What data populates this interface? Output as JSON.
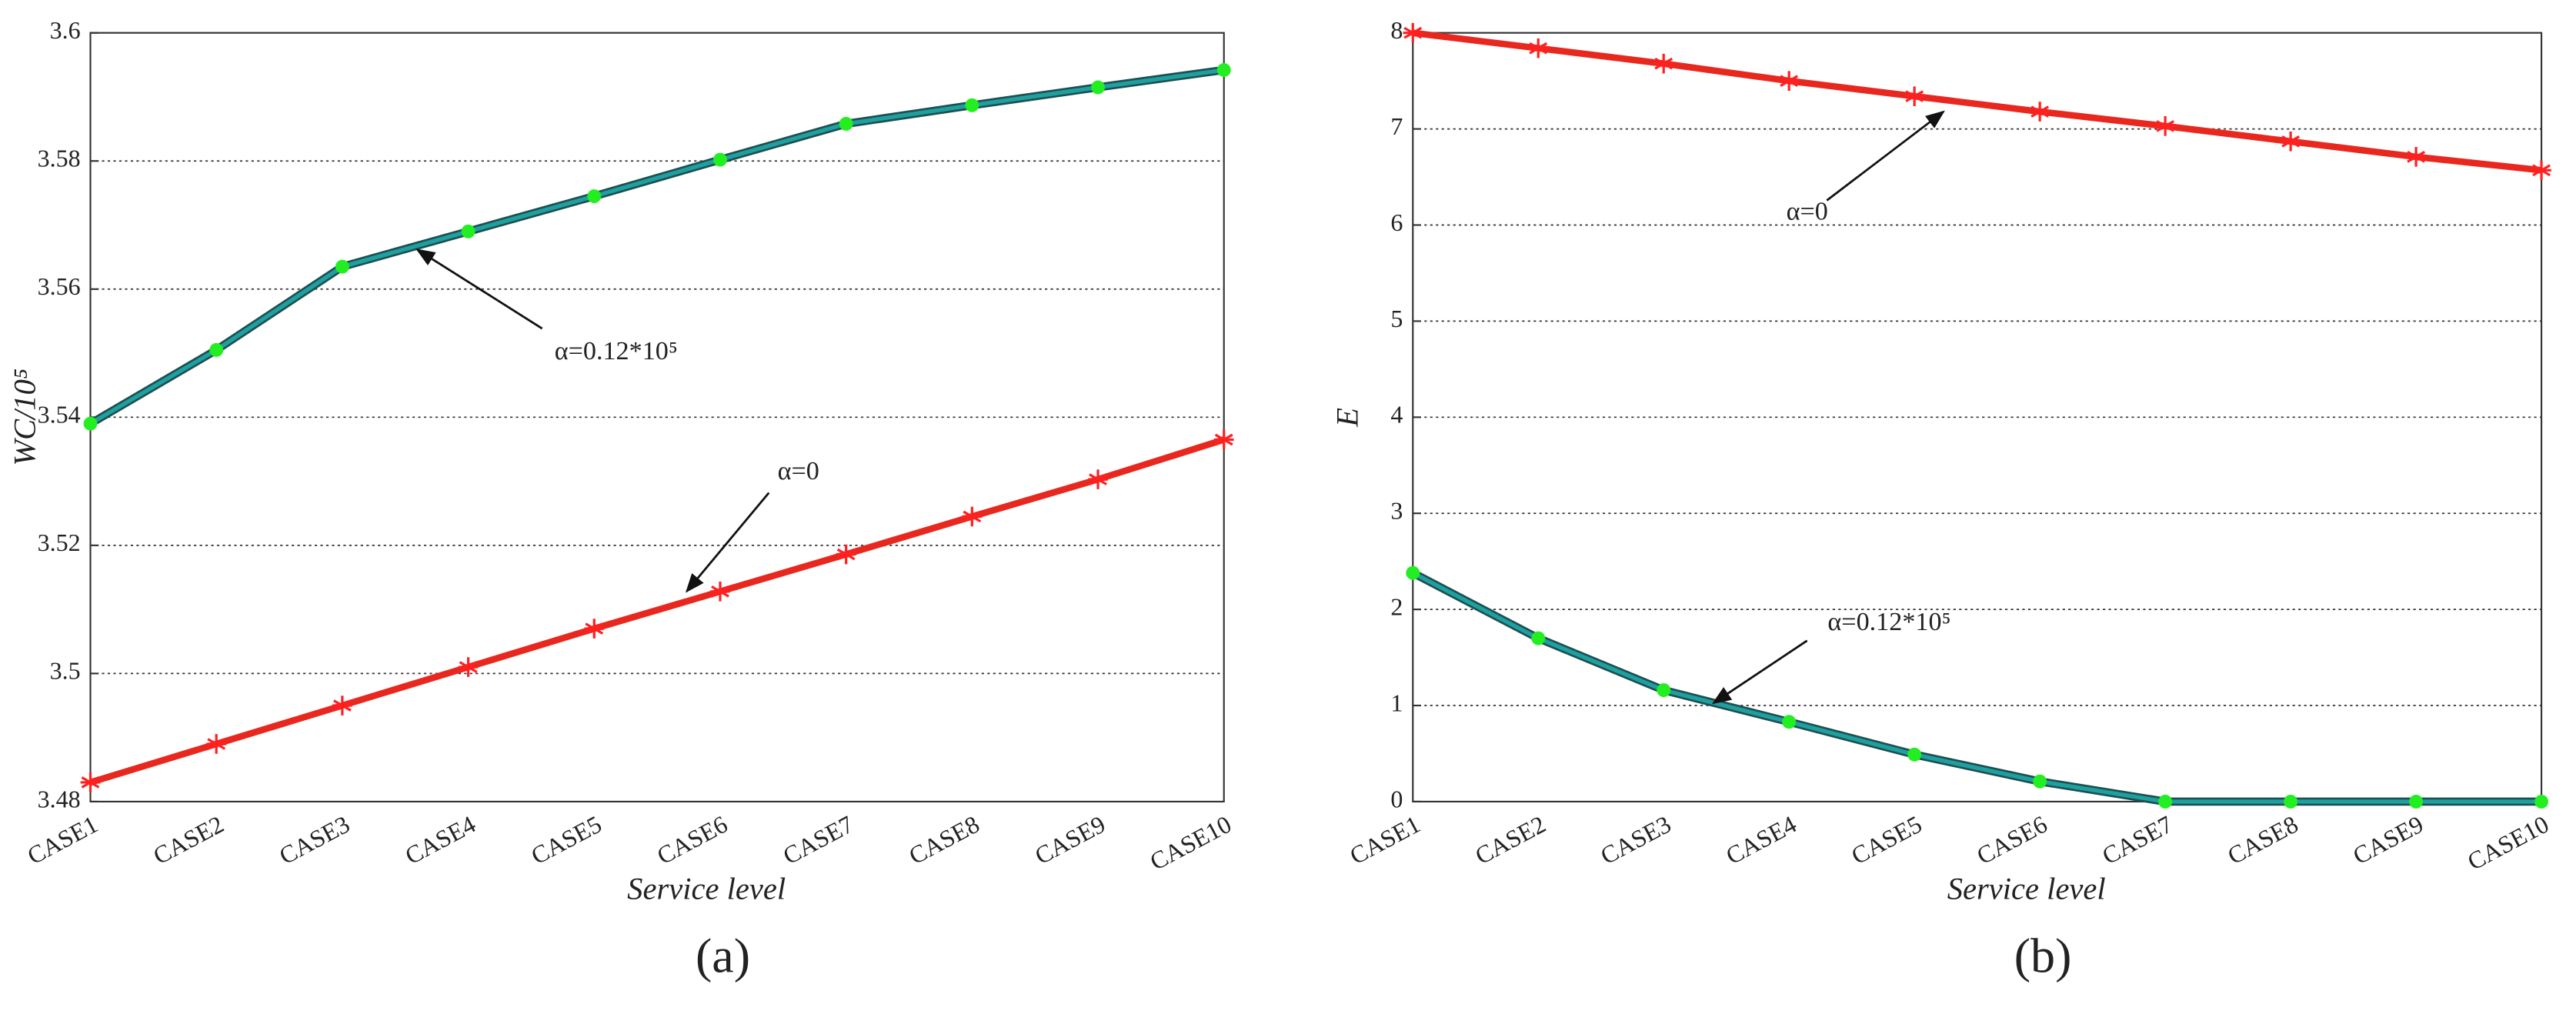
{
  "chart_data": [
    {
      "type": "line",
      "panel_label": "(a)",
      "x_label": "Service level",
      "y_label": "WC/10⁵",
      "categories": [
        "CASE1",
        "CASE2",
        "CASE3",
        "CASE4",
        "CASE5",
        "CASE6",
        "CASE7",
        "CASE8",
        "CASE9",
        "CASE10"
      ],
      "ylim": [
        3.48,
        3.6
      ],
      "yticks": [
        3.48,
        3.5,
        3.52,
        3.54,
        3.56,
        3.58,
        3.6
      ],
      "grid": true,
      "series": [
        {
          "name": "α=0.12*10⁵",
          "color": "#1fa0a0",
          "marker": "circle",
          "marker_color": "#22ee22",
          "values": [
            3.539,
            3.5505,
            3.5635,
            3.569,
            3.5745,
            3.5802,
            3.5858,
            3.5887,
            3.5915,
            3.5942
          ]
        },
        {
          "name": "α=0",
          "color": "#e8281e",
          "marker": "star",
          "marker_color": "#ff2020",
          "values": [
            3.483,
            3.489,
            3.495,
            3.501,
            3.507,
            3.5128,
            3.5186,
            3.5245,
            3.5303,
            3.5365
          ]
        }
      ]
    },
    {
      "type": "line",
      "panel_label": "(b)",
      "x_label": "Service level",
      "y_label": "E",
      "categories": [
        "CASE1",
        "CASE2",
        "CASE3",
        "CASE4",
        "CASE5",
        "CASE6",
        "CASE7",
        "CASE8",
        "CASE9",
        "CASE10"
      ],
      "ylim": [
        0,
        8
      ],
      "yticks": [
        0,
        1,
        2,
        3,
        4,
        5,
        6,
        7,
        8
      ],
      "grid": true,
      "series": [
        {
          "name": "α=0",
          "color": "#e8281e",
          "marker": "star",
          "marker_color": "#ff2020",
          "values": [
            8,
            7.84,
            7.68,
            7.5,
            7.34,
            7.18,
            7.03,
            6.87,
            6.71,
            6.57
          ]
        },
        {
          "name": "α=0.12*10⁵",
          "color": "#1fa0a0",
          "marker": "circle",
          "marker_color": "#22ee22",
          "values": [
            2.38,
            1.7,
            1.16,
            0.83,
            0.49,
            0.21,
            0,
            0,
            0,
            0
          ]
        }
      ]
    }
  ]
}
